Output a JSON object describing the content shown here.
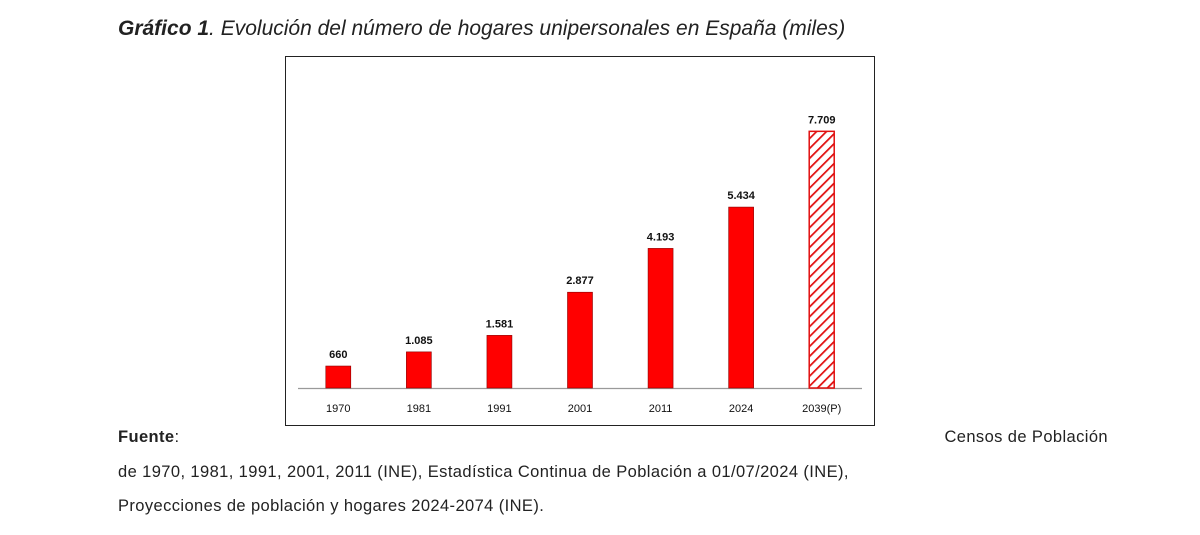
{
  "title": {
    "label": "Gráfico 1",
    "text": ". Evolución del número de hogares unipersonales en España (miles)"
  },
  "chart_data": {
    "type": "bar",
    "categories": [
      "1970",
      "1981",
      "1991",
      "2001",
      "2011",
      "2024",
      "2039(P)"
    ],
    "values": [
      660,
      1085,
      1581,
      2877,
      4193,
      5434,
      7709
    ],
    "data_labels": [
      "660",
      "1.085",
      "1.581",
      "2.877",
      "4.193",
      "5.434",
      "7.709"
    ],
    "projected": [
      false,
      false,
      false,
      false,
      false,
      false,
      true
    ],
    "title": "",
    "xlabel": "",
    "ylabel": "",
    "ylim": [
      0,
      8500
    ],
    "grid": false,
    "legend": "none",
    "colors": {
      "bar": "#ff0000",
      "bar_stroke": "#8b0000",
      "hatch": "#e11010"
    }
  },
  "source": {
    "label": "Fuente",
    "colon": ":",
    "line1_right": "Censos de Población",
    "line2": "de 1970, 1981, 1991, 2001, 2011 (INE), Estadística Continua de Población a 01/07/2024 (INE),",
    "line3": "Proyecciones de población y hogares 2024-2074 (INE)."
  }
}
